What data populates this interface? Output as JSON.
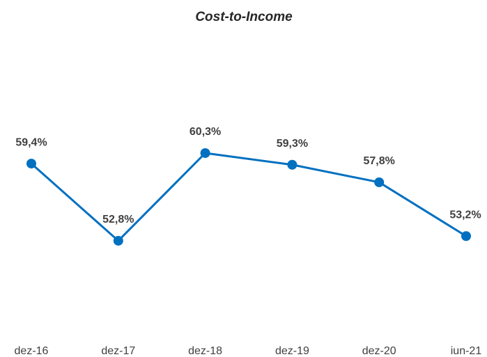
{
  "chart_data": {
    "type": "line",
    "title": "Cost-to-Income",
    "categories": [
      "dez-16",
      "dez-17",
      "dez-18",
      "dez-19",
      "dez-20",
      "iun-21"
    ],
    "series": [
      {
        "name": "Cost-to-Income",
        "color": "#0070c0",
        "values": [
          59.4,
          52.8,
          60.3,
          59.3,
          57.8,
          53.2
        ],
        "value_labels": [
          "59,4%",
          "52,8%",
          "60,3%",
          "59,3%",
          "57,8%",
          "53,2%"
        ]
      }
    ],
    "ylim": [
      45,
      65
    ],
    "grid": false
  }
}
